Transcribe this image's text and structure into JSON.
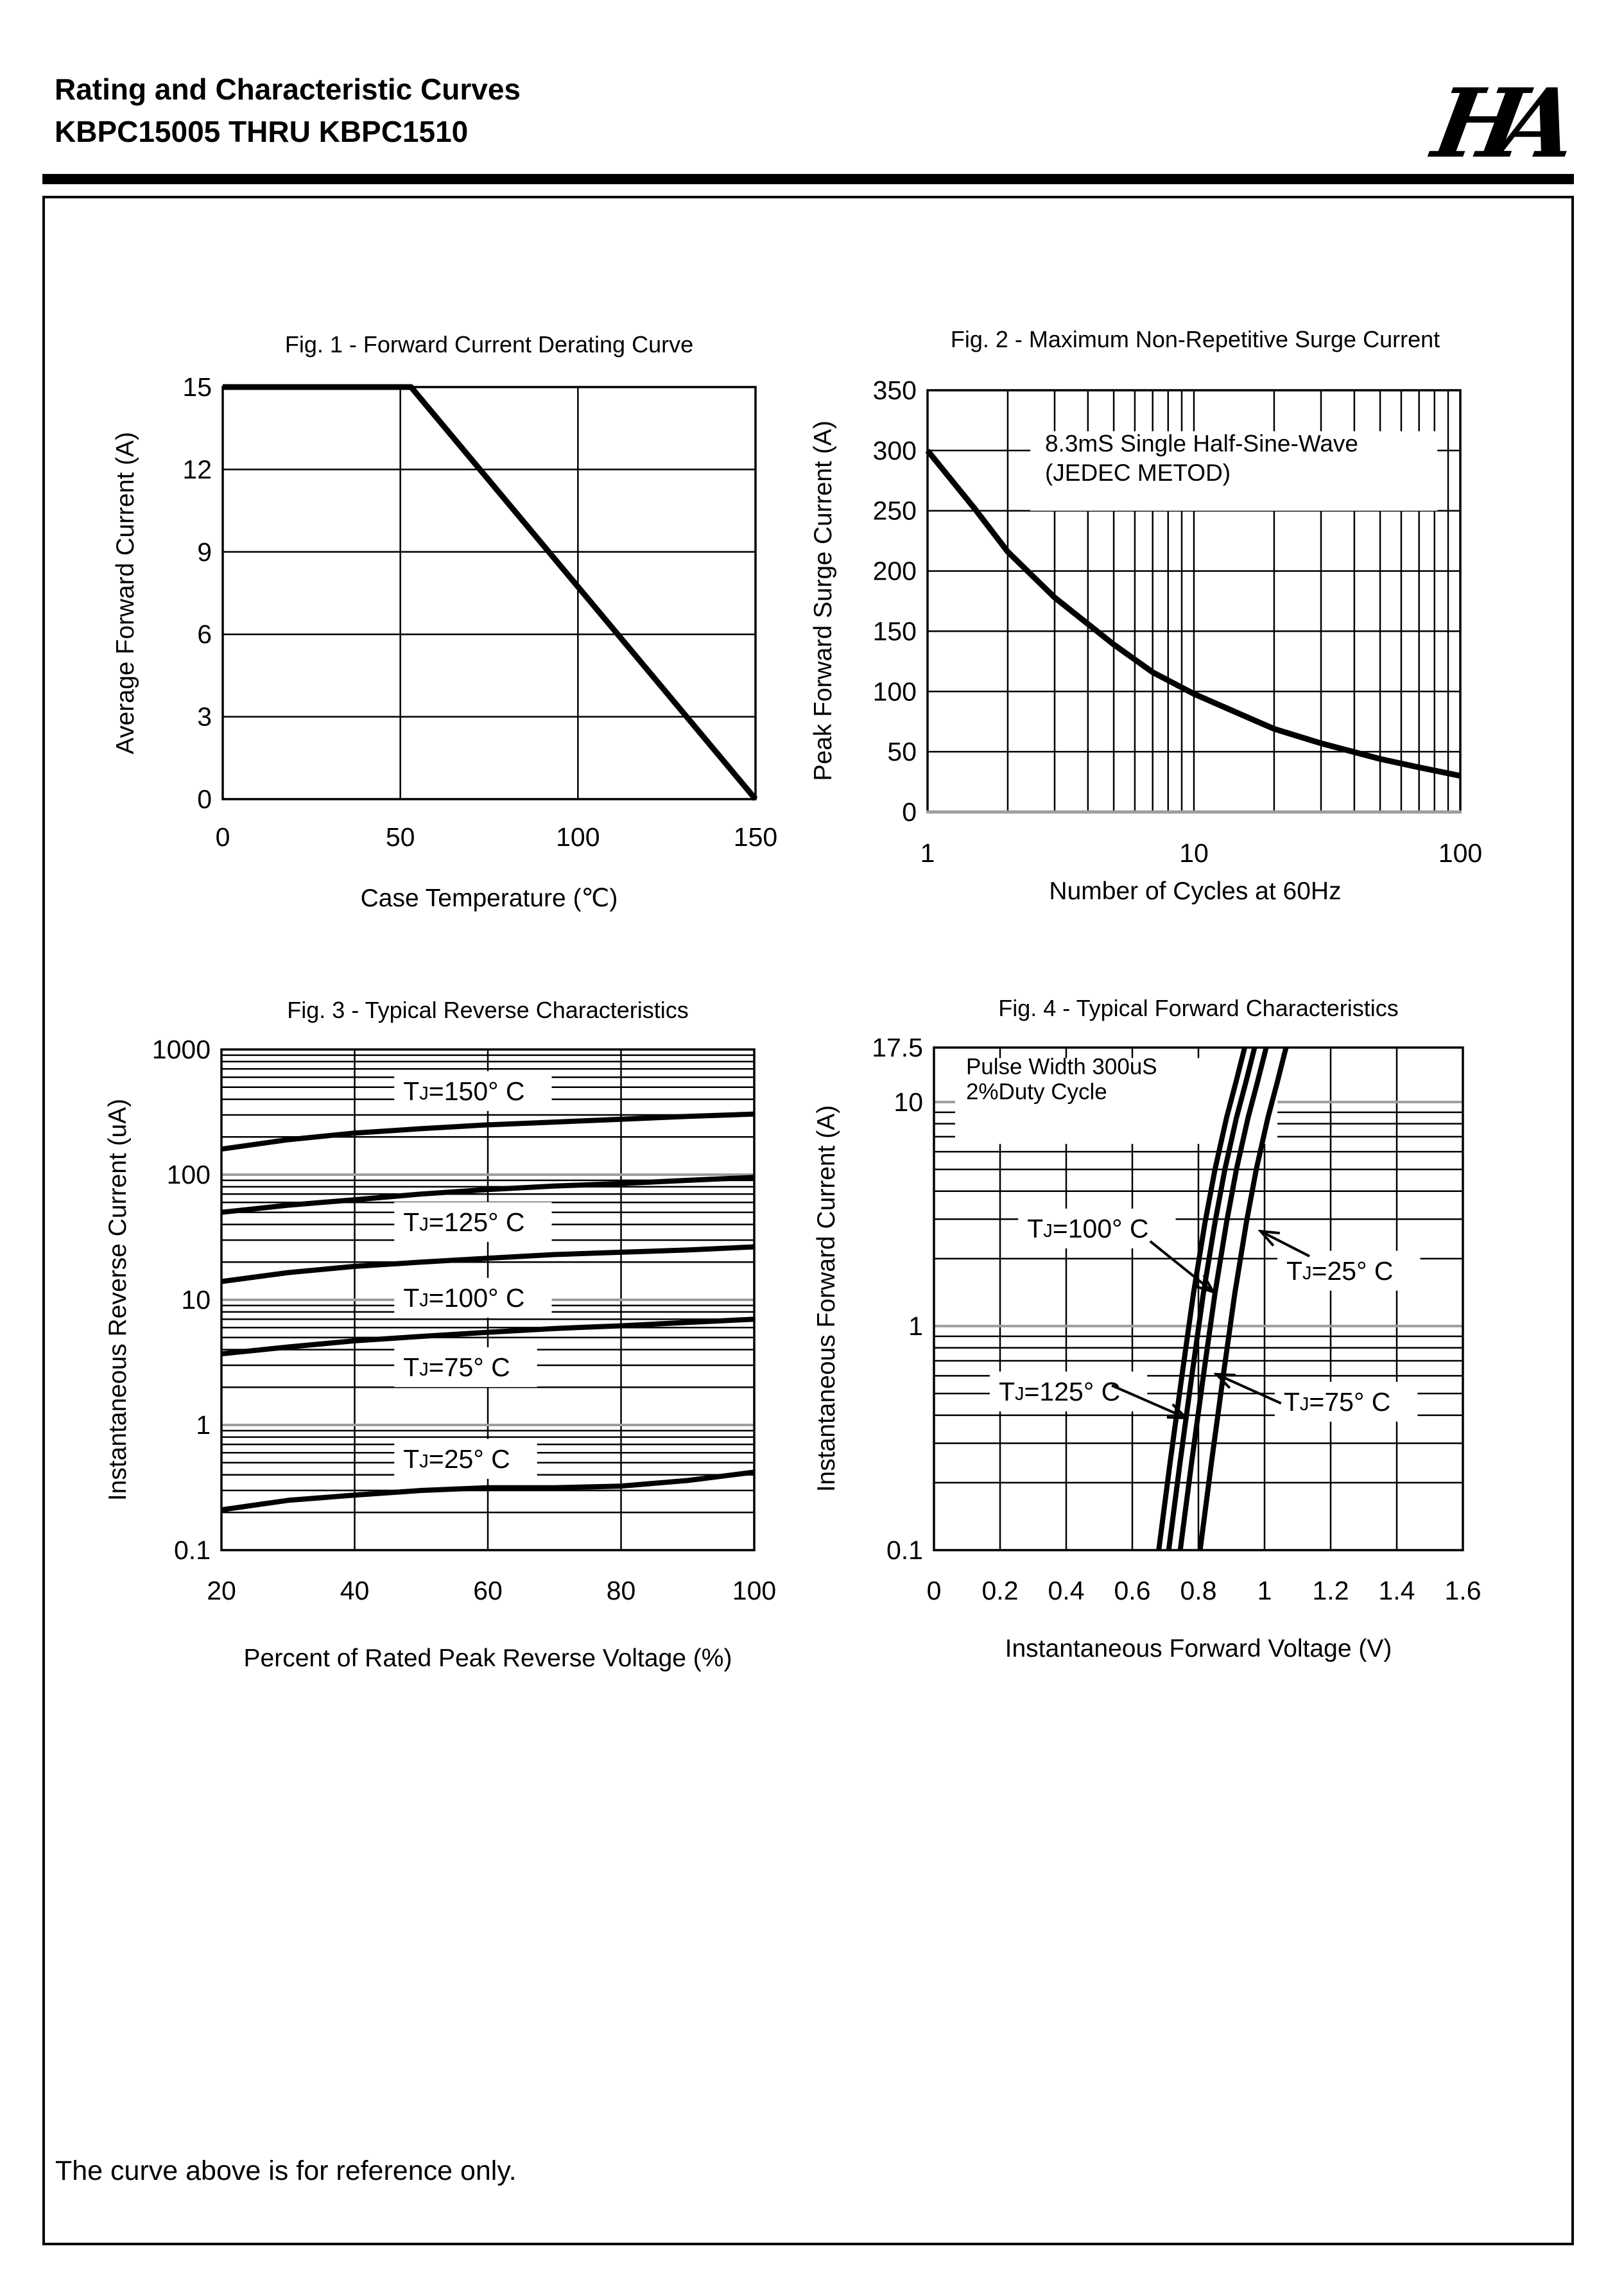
{
  "header": {
    "title_line1": "Rating and Characteristic Curves",
    "title_line2": "KBPC15005 THRU KBPC1510",
    "logo_text": "HA"
  },
  "footer": {
    "note": "The curve above is for reference only."
  },
  "colors": {
    "line": "#000000",
    "major_grid": "#9e9e9e",
    "background": "#ffffff"
  },
  "chart_data": [
    {
      "id": "fig1",
      "type": "line",
      "title": "Fig. 1 - Forward Current Derating Curve",
      "xlabel": "Case Temperature (℃)",
      "ylabel": "Average Forward Current (A)",
      "x_axis": {
        "type": "linear",
        "min": 0,
        "max": 150,
        "ticks": [
          0,
          50,
          100,
          150
        ],
        "tick_labels": [
          "0",
          "50",
          "100",
          "150"
        ],
        "gridlines": [
          50,
          100
        ]
      },
      "y_axis": {
        "type": "linear",
        "min": 0,
        "max": 15,
        "ticks": [
          15,
          12,
          9,
          6,
          3,
          0
        ],
        "tick_labels": [
          "15",
          "12",
          "9",
          "6",
          "3",
          "0"
        ],
        "gridlines": [
          3,
          6,
          9,
          12
        ]
      },
      "series": [
        {
          "name": "derating-curve",
          "points": [
            [
              0,
              15
            ],
            [
              53,
              15
            ],
            [
              150,
              0
            ]
          ]
        }
      ]
    },
    {
      "id": "fig2",
      "type": "line",
      "title": "Fig. 2 - Maximum Non-Repetitive Surge Current",
      "xlabel": "Number of Cycles at 60Hz",
      "ylabel": "Peak Forward Surge Current (A)",
      "x_axis": {
        "type": "log",
        "min": 1,
        "max": 100,
        "ticks": [
          1,
          10,
          100
        ],
        "tick_labels": [
          "1",
          "10",
          "100"
        ]
      },
      "y_axis": {
        "type": "linear",
        "min": 0,
        "max": 350,
        "ticks": [
          350,
          300,
          250,
          200,
          150,
          100,
          50,
          0
        ],
        "tick_labels": [
          "350",
          "300",
          "250",
          "200",
          "150",
          "100",
          "50",
          "0"
        ],
        "gridlines": [
          50,
          100,
          150,
          200,
          250,
          300
        ]
      },
      "annotation": {
        "box": {
          "x1": 2.43,
          "y1": 250,
          "x2": 82,
          "y2": 316
        },
        "lines": [
          {
            "text": "8.3mS Single Half-Sine-Wave",
            "x": 2.76,
            "y": 299
          },
          {
            "text": "(JEDEC METOD)",
            "x": 2.76,
            "y": 275
          }
        ]
      },
      "series": [
        {
          "name": "surge-current",
          "points": [
            [
              1,
              300
            ],
            [
              1.5,
              252
            ],
            [
              2,
              216
            ],
            [
              3,
              178
            ],
            [
              4,
              156
            ],
            [
              5,
              139
            ],
            [
              7,
              116
            ],
            [
              10,
              98
            ],
            [
              15,
              81
            ],
            [
              20,
              69
            ],
            [
              30,
              57
            ],
            [
              50,
              44
            ],
            [
              70,
              37
            ],
            [
              100,
              30
            ]
          ]
        }
      ]
    },
    {
      "id": "fig3",
      "type": "line",
      "title": "Fig. 3 - Typical Reverse Characteristics",
      "xlabel": "Percent of Rated Peak Reverse Voltage (%)",
      "ylabel": "Instantaneous Reverse Current (uA)",
      "x_axis": {
        "type": "linear",
        "min": 20,
        "max": 100,
        "ticks": [
          20,
          40,
          60,
          80,
          100
        ],
        "tick_labels": [
          "20",
          "40",
          "60",
          "80",
          "100"
        ],
        "gridlines": [
          40,
          60,
          80
        ]
      },
      "y_axis": {
        "type": "log",
        "min": 0.1,
        "max": 1000,
        "ticks": [
          1000,
          100,
          10,
          1,
          0.1
        ],
        "tick_labels": [
          "1000",
          "100",
          "10",
          "1",
          "0.1"
        ],
        "gray_majors": [
          100,
          10,
          1
        ]
      },
      "curve_labels": [
        {
          "text": "TJ=150°  C",
          "x": 47.3,
          "y": 448
        },
        {
          "text": "TJ=125°  C",
          "x": 47.3,
          "y": 40.3
        },
        {
          "text": "TJ=100°  C",
          "x": 47.3,
          "y": 10.0
        },
        {
          "text": "TJ=75°  C",
          "x": 47.3,
          "y": 2.79
        },
        {
          "text": "TJ=25°  C",
          "x": 47.3,
          "y": 0.516
        }
      ],
      "series": [
        {
          "name": "TJ=150C",
          "points": [
            [
              20,
              160
            ],
            [
              30,
              190
            ],
            [
              40,
              215
            ],
            [
              50,
              233
            ],
            [
              60,
              250
            ],
            [
              70,
              263
            ],
            [
              80,
              277
            ],
            [
              90,
              292
            ],
            [
              100,
              305
            ]
          ]
        },
        {
          "name": "TJ=125C",
          "points": [
            [
              20,
              50
            ],
            [
              30,
              57
            ],
            [
              40,
              63
            ],
            [
              50,
              70
            ],
            [
              60,
              76
            ],
            [
              70,
              81
            ],
            [
              80,
              85
            ],
            [
              90,
              90
            ],
            [
              100,
              95
            ]
          ]
        },
        {
          "name": "TJ=100C",
          "points": [
            [
              20,
              14
            ],
            [
              30,
              16.5
            ],
            [
              40,
              18.5
            ],
            [
              50,
              20
            ],
            [
              60,
              21.5
            ],
            [
              70,
              23
            ],
            [
              80,
              24
            ],
            [
              90,
              25
            ],
            [
              100,
              26.5
            ]
          ]
        },
        {
          "name": "TJ=75C",
          "points": [
            [
              20,
              3.7
            ],
            [
              30,
              4.2
            ],
            [
              40,
              4.7
            ],
            [
              50,
              5.1
            ],
            [
              60,
              5.5
            ],
            [
              70,
              5.9
            ],
            [
              80,
              6.2
            ],
            [
              90,
              6.6
            ],
            [
              100,
              7
            ]
          ]
        },
        {
          "name": "TJ=25C",
          "points": [
            [
              20,
              0.21
            ],
            [
              30,
              0.25
            ],
            [
              40,
              0.275
            ],
            [
              50,
              0.3
            ],
            [
              60,
              0.315
            ],
            [
              70,
              0.315
            ],
            [
              80,
              0.325
            ],
            [
              90,
              0.36
            ],
            [
              100,
              0.42
            ]
          ]
        }
      ]
    },
    {
      "id": "fig4",
      "type": "line",
      "title": "Fig. 4 - Typical Forward Characteristics",
      "xlabel": "Instantaneous Forward Voltage (V)",
      "ylabel": "Instantaneous Forward Current (A)",
      "x_axis": {
        "type": "linear",
        "min": 0,
        "max": 1.6,
        "ticks": [
          0,
          0.2,
          0.4,
          0.6,
          0.8,
          1,
          1.2,
          1.4,
          1.6
        ],
        "tick_labels": [
          "0",
          "0.2",
          "0.4",
          "0.6",
          "0.8",
          "1",
          "1.2",
          "1.4",
          "1.6"
        ],
        "gridlines": [
          0.2,
          0.4,
          0.6,
          0.8,
          1.0,
          1.2,
          1.4
        ]
      },
      "y_axis": {
        "type": "log",
        "min": 0.1,
        "max": 17.5,
        "ticks": [
          17.5,
          10,
          1,
          0.1
        ],
        "tick_labels": [
          "17.5",
          "10",
          "1",
          "0.1"
        ],
        "gray_majors": [
          10,
          1
        ]
      },
      "annotation": {
        "box": {
          "x1": 0.064,
          "y1": 6.5,
          "x2": 1.039,
          "y2": 15.7
        },
        "lines": [
          {
            "text": "Pulse Width 300uS",
            "x": 0.097,
            "y": 13.3
          },
          {
            "text": "2%Duty Cycle",
            "x": 0.097,
            "y": 10.3
          }
        ]
      },
      "curve_labels": [
        {
          "text": "TJ=100°  C",
          "x": 0.282,
          "y": 2.67,
          "arrow": {
            "x1": 0.654,
            "y1": 2.39,
            "x2": 0.845,
            "y2": 1.42
          }
        },
        {
          "text": "TJ=25°  C",
          "x": 1.066,
          "y": 1.73,
          "arrow": {
            "x1": 1.136,
            "y1": 2.05,
            "x2": 0.988,
            "y2": 2.65
          }
        },
        {
          "text": "TJ=125°  C",
          "x": 0.196,
          "y": 0.5,
          "arrow": {
            "x1": 0.538,
            "y1": 0.543,
            "x2": 0.763,
            "y2": 0.389
          }
        },
        {
          "text": "TJ=75°  C",
          "x": 1.058,
          "y": 0.45,
          "arrow": {
            "x1": 1.05,
            "y1": 0.452,
            "x2": 0.854,
            "y2": 0.61
          }
        }
      ],
      "series": [
        {
          "name": "TJ=125C",
          "points": [
            [
              0.68,
              0.1
            ],
            [
              0.715,
              0.25
            ],
            [
              0.75,
              0.6
            ],
            [
              0.785,
              1.4
            ],
            [
              0.82,
              2.9
            ],
            [
              0.85,
              5
            ],
            [
              0.885,
              8.5
            ],
            [
              0.915,
              12.5
            ],
            [
              0.94,
              17.5
            ],
            [
              0.955,
              21
            ]
          ]
        },
        {
          "name": "TJ=100C",
          "points": [
            [
              0.71,
              0.1
            ],
            [
              0.745,
              0.25
            ],
            [
              0.78,
              0.6
            ],
            [
              0.815,
              1.4
            ],
            [
              0.85,
              2.9
            ],
            [
              0.88,
              5
            ],
            [
              0.915,
              8.5
            ],
            [
              0.945,
              12.5
            ],
            [
              0.97,
              17.5
            ],
            [
              0.985,
              21
            ]
          ]
        },
        {
          "name": "TJ=75C",
          "points": [
            [
              0.745,
              0.1
            ],
            [
              0.78,
              0.25
            ],
            [
              0.815,
              0.6
            ],
            [
              0.85,
              1.4
            ],
            [
              0.885,
              2.9
            ],
            [
              0.915,
              5
            ],
            [
              0.95,
              8.5
            ],
            [
              0.98,
              12.5
            ],
            [
              1.005,
              17.5
            ],
            [
              1.02,
              21
            ]
          ]
        },
        {
          "name": "TJ=25C",
          "points": [
            [
              0.805,
              0.1
            ],
            [
              0.84,
              0.25
            ],
            [
              0.875,
              0.6
            ],
            [
              0.91,
              1.4
            ],
            [
              0.945,
              2.9
            ],
            [
              0.975,
              5
            ],
            [
              1.01,
              8.5
            ],
            [
              1.04,
              12.5
            ],
            [
              1.065,
              17.5
            ],
            [
              1.08,
              21
            ]
          ]
        }
      ]
    }
  ]
}
